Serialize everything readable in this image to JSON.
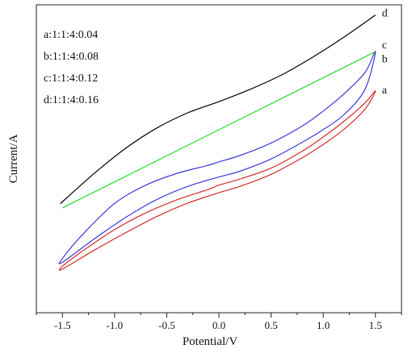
{
  "chart_data": {
    "type": "line",
    "title": "",
    "xlabel": "Potential/V",
    "ylabel": "Current/A",
    "xlim": [
      -1.75,
      1.75
    ],
    "ylim": [
      0,
      1
    ],
    "x_ticks": [
      -1.5,
      -1.0,
      -0.5,
      0.0,
      0.5,
      1.0,
      1.5
    ],
    "x_tick_labels": [
      "-1.5",
      "-1.0",
      "-0.5",
      "0.0",
      "0.5",
      "1.0",
      "1.5"
    ],
    "y_ticks_labeled": false,
    "grid": false,
    "legend_position": "top-left",
    "legend_entries": [
      "a:1:1:4:0.04",
      "b:1:1:4:0.08",
      "c:1:1:4:0.12",
      "d:1:1:4:0.16"
    ],
    "series": [
      {
        "name": "a",
        "color": "#d42a2a",
        "label": "a",
        "closed": true,
        "x": [
          -1.5,
          -1.3,
          -1.0,
          -0.7,
          -0.4,
          -0.1,
          0.0,
          0.2,
          0.5,
          0.8,
          1.0,
          1.2,
          1.4,
          1.5,
          1.4,
          1.2,
          1.0,
          0.8,
          0.5,
          0.2,
          0.0,
          -0.3,
          -0.6,
          -0.9,
          -1.2,
          -1.5
        ],
        "y": [
          0.06,
          0.12,
          0.2,
          0.264,
          0.314,
          0.354,
          0.37,
          0.393,
          0.435,
          0.5,
          0.554,
          0.614,
          0.684,
          0.73,
          0.66,
          0.584,
          0.525,
          0.475,
          0.411,
          0.365,
          0.341,
          0.301,
          0.249,
          0.187,
          0.12,
          0.049
        ]
      },
      {
        "name": "b",
        "color": "#3a3ad8",
        "label": "b",
        "closed": true,
        "x": [
          -1.5,
          -1.3,
          -1.0,
          -0.7,
          -0.4,
          -0.1,
          0.0,
          0.2,
          0.5,
          0.8,
          1.0,
          1.2,
          1.4,
          1.5,
          1.4,
          1.2,
          1.0,
          0.8,
          0.5,
          0.2,
          0.0,
          -0.3,
          -0.6,
          -0.9,
          -1.2,
          -1.5
        ],
        "y": [
          0.09,
          0.184,
          0.3,
          0.37,
          0.415,
          0.446,
          0.459,
          0.483,
          0.531,
          0.596,
          0.653,
          0.719,
          0.8,
          0.881,
          0.736,
          0.64,
          0.582,
          0.534,
          0.47,
          0.423,
          0.401,
          0.365,
          0.314,
          0.245,
          0.163,
          0.075
        ]
      },
      {
        "name": "c",
        "color": "#22dd22",
        "label": "c",
        "closed": false,
        "x": [
          -1.5,
          1.5
        ],
        "y": [
          0.283,
          0.88
        ]
      },
      {
        "name": "d",
        "color": "#000000",
        "label": "d",
        "closed": false,
        "x": [
          -1.52,
          -1.2,
          -0.9,
          -0.6,
          -0.3,
          0.0,
          0.3,
          0.6,
          0.9,
          1.2,
          1.5
        ],
        "y": [
          0.299,
          0.413,
          0.509,
          0.587,
          0.646,
          0.689,
          0.736,
          0.791,
          0.859,
          0.936,
          1.02
        ]
      }
    ]
  }
}
